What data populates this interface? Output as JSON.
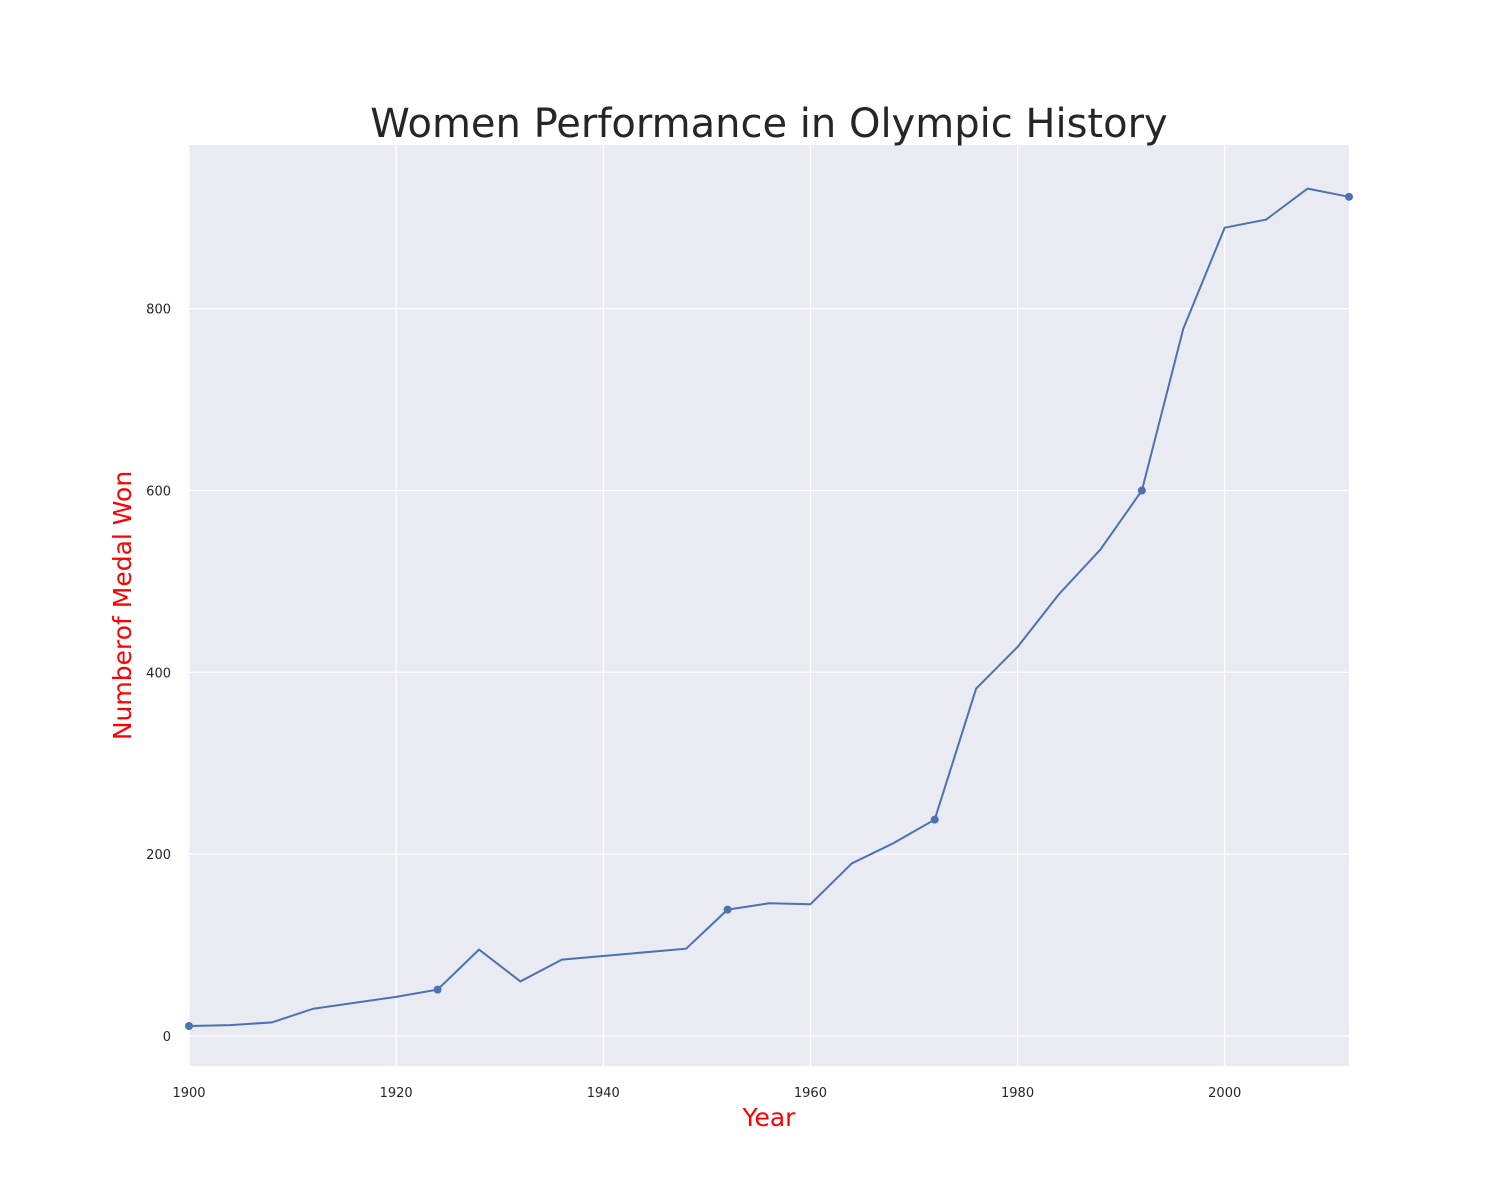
{
  "chart_data": {
    "type": "line",
    "title": "Women Performance in Olympic History",
    "xlabel": "Year",
    "ylabel": "Numberof Medal Won",
    "label_color": "#ff0000",
    "title_color": "#262626",
    "line_color": "#4c72b0",
    "plot_background": "#eaeaf2",
    "grid": true,
    "grid_color": "#ffffff",
    "xlim": [
      1900,
      2012
    ],
    "ylim": [
      -33,
      980
    ],
    "xticks": [
      1900,
      1920,
      1940,
      1960,
      1980,
      2000
    ],
    "yticks": [
      0,
      200,
      400,
      600,
      800
    ],
    "x": [
      1900,
      1904,
      1908,
      1912,
      1920,
      1924,
      1928,
      1932,
      1936,
      1948,
      1952,
      1956,
      1960,
      1964,
      1968,
      1972,
      1976,
      1980,
      1984,
      1988,
      1992,
      1996,
      2000,
      2004,
      2008,
      2012
    ],
    "y": [
      11,
      12,
      15,
      30,
      43,
      51,
      95,
      60,
      84,
      96,
      139,
      146,
      145,
      190,
      212,
      238,
      382,
      428,
      486,
      535,
      600,
      778,
      889,
      898,
      932,
      923
    ],
    "markers_at": [
      1900,
      1924,
      1952,
      1972,
      1992,
      2012
    ]
  }
}
